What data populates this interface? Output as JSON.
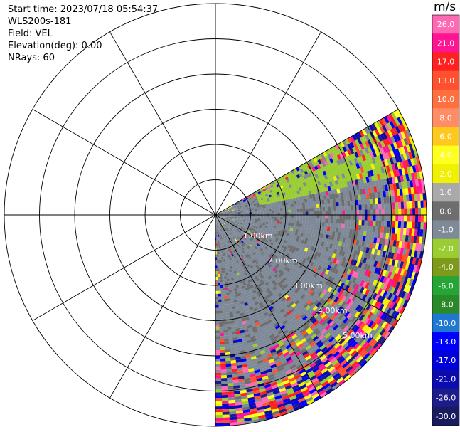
{
  "header": {
    "start_time": "Start time: 2023/07/18 05:54:37",
    "instrument": "WLS200s-181",
    "field": "Field: VEL",
    "elevation": "Elevation(deg): 0.00",
    "nrays": "NRays: 60"
  },
  "colorbar": {
    "unit": "m/s",
    "bins": [
      {
        "label": "-30.0",
        "color": "#1a1a5e"
      },
      {
        "label": "-26.0",
        "color": "#1c1c8a"
      },
      {
        "label": "-21.0",
        "color": "#0b0bb0"
      },
      {
        "label": "-17.0",
        "color": "#0000d8"
      },
      {
        "label": "-13.0",
        "color": "#0000ff"
      },
      {
        "label": "-10.0",
        "color": "#1e78d2"
      },
      {
        "label": "-8.0",
        "color": "#2a8a2a"
      },
      {
        "label": "-6.0",
        "color": "#25a535"
      },
      {
        "label": "-4.0",
        "color": "#7e9a1a"
      },
      {
        "label": "-2.0",
        "color": "#9acd32"
      },
      {
        "label": "-1.0",
        "color": "#7f8a99"
      },
      {
        "label": "0.0",
        "color": "#6e6e6e"
      },
      {
        "label": "1.0",
        "color": "#a9a9a9"
      },
      {
        "label": "2.0",
        "color": "#f0f000"
      },
      {
        "label": "4.0",
        "color": "#ffff20"
      },
      {
        "label": "6.0",
        "color": "#ffc81e"
      },
      {
        "label": "8.0",
        "color": "#ff8c64"
      },
      {
        "label": "10.0",
        "color": "#ff7040"
      },
      {
        "label": "13.0",
        "color": "#ff5030"
      },
      {
        "label": "17.0",
        "color": "#ff2020"
      },
      {
        "label": "21.0",
        "color": "#ff1493"
      },
      {
        "label": "26.0",
        "color": "#ff69b4"
      }
    ]
  },
  "chart_data": {
    "type": "heatmap",
    "field": "VEL",
    "units": "m/s",
    "range_rings_km": [
      1,
      2,
      3,
      4,
      5
    ],
    "ring_labels": [
      "1.00km",
      "2.00km",
      "3.00km",
      "4.00km",
      "5.00km"
    ],
    "azimuth_coverage_deg": [
      60,
      180
    ],
    "max_range_km": 6.0,
    "nrays": 60,
    "spokes_deg": [
      0,
      30,
      60,
      90,
      120,
      150,
      180,
      210,
      240,
      270,
      300,
      330
    ],
    "vmin": -30.0,
    "vmax": 26.0
  }
}
